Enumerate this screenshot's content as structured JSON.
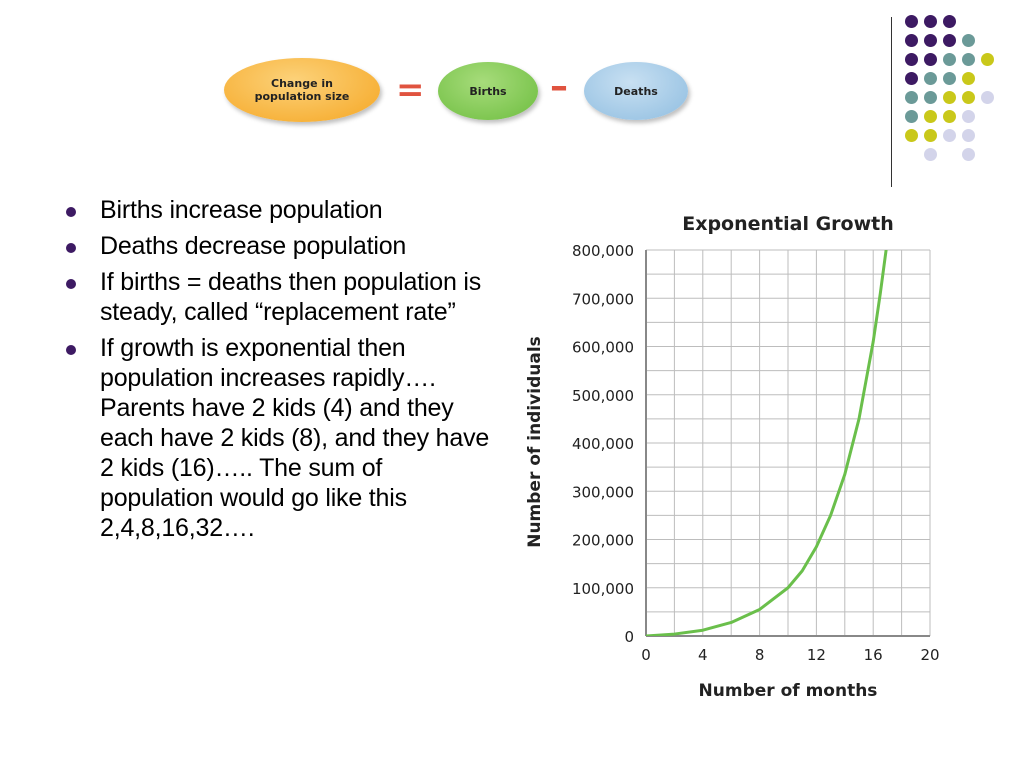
{
  "equation": {
    "change_label": "Change in population size",
    "equals": "=",
    "births_label": "Births",
    "minus": "–",
    "deaths_label": "Deaths",
    "colors": {
      "change": "#f5a623",
      "births": "#6dbd3f",
      "deaths": "#8fbde0",
      "operator": "#e0533f"
    }
  },
  "decoration": {
    "dot_colors": {
      "purple": "#3d1a63",
      "teal": "#6b9a98",
      "yellow": "#c9c81a",
      "lavender": "#d3d4ea"
    },
    "rows": [
      [
        "purple",
        "purple",
        "purple"
      ],
      [
        "purple",
        "purple",
        "purple",
        "teal"
      ],
      [
        "purple",
        "purple",
        "teal",
        "teal",
        "yellow"
      ],
      [
        "purple",
        "teal",
        "teal",
        "yellow"
      ],
      [
        "teal",
        "teal",
        "yellow",
        "yellow",
        "lavender"
      ],
      [
        "teal",
        "yellow",
        "yellow",
        "lavender"
      ],
      [
        "yellow",
        "yellow",
        "lavender",
        "lavender"
      ],
      [
        "",
        "lavender",
        "",
        "lavender"
      ]
    ]
  },
  "bullets": [
    "Births increase population",
    "Deaths decrease population",
    "If births = deaths then population is steady, called “replacement rate”",
    "If growth is exponential then population increases rapidly…. Parents have 2 kids (4) and they each have 2 kids (8), and they have 2 kids (16)….. The sum of population would go like this 2,4,8,16,32…."
  ],
  "chart_data": {
    "type": "line",
    "title": "Exponential Growth",
    "xlabel": "Number of months",
    "ylabel": "Number of individuals",
    "xlim": [
      0,
      20
    ],
    "ylim": [
      0,
      800000
    ],
    "x_ticks": [
      "0",
      "4",
      "8",
      "12",
      "16",
      "20"
    ],
    "y_ticks": [
      "0",
      "100,000",
      "200,000",
      "300,000",
      "400,000",
      "500,000",
      "600,000",
      "700,000",
      "800,000"
    ],
    "grid": true,
    "line_color": "#6abf4b",
    "series": [
      {
        "x": [
          0,
          2,
          4,
          6,
          8,
          10,
          11,
          12,
          13,
          14,
          15,
          16,
          16.5,
          17
        ],
        "y": [
          0,
          4000,
          12000,
          28000,
          55000,
          100000,
          135000,
          185000,
          250000,
          335000,
          450000,
          610000,
          710000,
          820000
        ]
      }
    ]
  }
}
